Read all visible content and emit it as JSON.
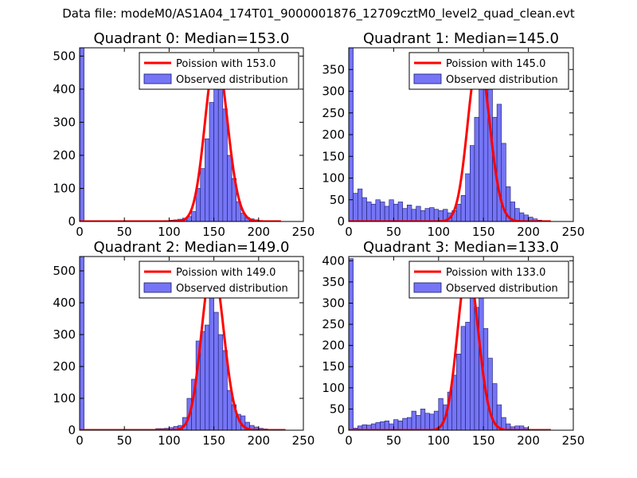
{
  "figure_title": "Data file: modeM0/AS1A04_174T01_9000001876_12709cztM0_level2_quad_clean.evt",
  "colors": {
    "bars": "#7575f5",
    "bar_edge": "#1a1a6e",
    "model": "#ff0000",
    "axes": "#000000"
  },
  "chart_data": [
    {
      "type": "bar",
      "title": "Quadrant 0: Median=153.0",
      "xlim": [
        0,
        250
      ],
      "ylim": [
        0,
        525
      ],
      "xticks": [
        0,
        50,
        100,
        150,
        200,
        250
      ],
      "yticks": [
        0,
        100,
        200,
        300,
        400,
        500
      ],
      "legend": [
        "Poission with 153.0",
        "Observed distribution"
      ],
      "legend_position": "top-right",
      "median": 153.0,
      "model_scale": 505,
      "model_x": [
        0,
        225
      ],
      "bin_width": 5,
      "bins": [
        [
          0,
          525
        ],
        [
          95,
          3
        ],
        [
          100,
          4
        ],
        [
          105,
          5
        ],
        [
          110,
          7
        ],
        [
          115,
          10
        ],
        [
          120,
          15
        ],
        [
          125,
          30
        ],
        [
          130,
          100
        ],
        [
          135,
          160
        ],
        [
          140,
          250
        ],
        [
          145,
          360
        ],
        [
          150,
          400
        ],
        [
          155,
          410
        ],
        [
          160,
          340
        ],
        [
          165,
          200
        ],
        [
          170,
          130
        ],
        [
          175,
          60
        ],
        [
          180,
          25
        ],
        [
          185,
          12
        ],
        [
          190,
          8
        ],
        [
          195,
          5
        ],
        [
          200,
          3
        ],
        [
          205,
          2
        ],
        [
          210,
          1
        ]
      ]
    },
    {
      "type": "bar",
      "title": "Quadrant 1: Median=145.0",
      "xlim": [
        0,
        250
      ],
      "ylim": [
        0,
        400
      ],
      "xticks": [
        0,
        50,
        100,
        150,
        200,
        250
      ],
      "yticks": [
        0,
        50,
        100,
        150,
        200,
        250,
        300,
        350
      ],
      "legend": [
        "Poission with 145.0",
        "Observed distribution"
      ],
      "legend_position": "top-right",
      "median": 145.0,
      "model_scale": 380,
      "model_x": [
        0,
        225
      ],
      "bin_width": 5,
      "bins": [
        [
          0,
          400
        ],
        [
          5,
          65
        ],
        [
          10,
          75
        ],
        [
          15,
          55
        ],
        [
          20,
          45
        ],
        [
          25,
          40
        ],
        [
          30,
          50
        ],
        [
          35,
          45
        ],
        [
          40,
          35
        ],
        [
          45,
          50
        ],
        [
          50,
          40
        ],
        [
          55,
          45
        ],
        [
          60,
          30
        ],
        [
          65,
          38
        ],
        [
          70,
          28
        ],
        [
          75,
          35
        ],
        [
          80,
          25
        ],
        [
          85,
          30
        ],
        [
          90,
          32
        ],
        [
          95,
          28
        ],
        [
          100,
          25
        ],
        [
          105,
          28
        ],
        [
          110,
          20
        ],
        [
          115,
          25
        ],
        [
          120,
          40
        ],
        [
          125,
          60
        ],
        [
          130,
          110
        ],
        [
          135,
          175
        ],
        [
          140,
          240
        ],
        [
          145,
          310
        ],
        [
          150,
          370
        ],
        [
          155,
          330
        ],
        [
          160,
          240
        ],
        [
          165,
          270
        ],
        [
          170,
          180
        ],
        [
          175,
          80
        ],
        [
          180,
          45
        ],
        [
          185,
          30
        ],
        [
          190,
          20
        ],
        [
          195,
          15
        ],
        [
          200,
          10
        ],
        [
          205,
          6
        ],
        [
          210,
          3
        ]
      ]
    },
    {
      "type": "bar",
      "title": "Quadrant 2: Median=149.0",
      "xlim": [
        0,
        250
      ],
      "ylim": [
        0,
        545
      ],
      "xticks": [
        0,
        50,
        100,
        150,
        200,
        250
      ],
      "yticks": [
        0,
        100,
        200,
        300,
        400,
        500
      ],
      "legend": [
        "Poission with 149.0",
        "Observed distribution"
      ],
      "legend_position": "top-right",
      "median": 149.0,
      "model_scale": 520,
      "model_x": [
        0,
        230
      ],
      "bin_width": 5,
      "bins": [
        [
          0,
          545
        ],
        [
          85,
          5
        ],
        [
          90,
          5
        ],
        [
          95,
          6
        ],
        [
          100,
          8
        ],
        [
          105,
          12
        ],
        [
          110,
          15
        ],
        [
          115,
          40
        ],
        [
          120,
          100
        ],
        [
          125,
          160
        ],
        [
          130,
          280
        ],
        [
          135,
          310
        ],
        [
          140,
          330
        ],
        [
          145,
          420
        ],
        [
          150,
          370
        ],
        [
          155,
          300
        ],
        [
          160,
          250
        ],
        [
          165,
          125
        ],
        [
          170,
          80
        ],
        [
          175,
          50
        ],
        [
          180,
          45
        ],
        [
          185,
          25
        ],
        [
          190,
          15
        ],
        [
          195,
          10
        ],
        [
          200,
          6
        ],
        [
          205,
          4
        ],
        [
          210,
          3
        ],
        [
          215,
          2
        ],
        [
          220,
          1
        ]
      ]
    },
    {
      "type": "bar",
      "title": "Quadrant 3: Median=133.0",
      "xlim": [
        0,
        250
      ],
      "ylim": [
        0,
        410
      ],
      "xticks": [
        0,
        50,
        100,
        150,
        200,
        250
      ],
      "yticks": [
        0,
        50,
        100,
        150,
        200,
        250,
        300,
        350,
        400
      ],
      "legend": [
        "Poission with 133.0",
        "Observed distribution"
      ],
      "legend_position": "top-right",
      "median": 133.0,
      "model_scale": 385,
      "model_x": [
        0,
        225
      ],
      "bin_width": 5,
      "bins": [
        [
          0,
          405
        ],
        [
          5,
          5
        ],
        [
          10,
          10
        ],
        [
          15,
          13
        ],
        [
          20,
          12
        ],
        [
          25,
          15
        ],
        [
          30,
          18
        ],
        [
          35,
          20
        ],
        [
          40,
          22
        ],
        [
          45,
          15
        ],
        [
          50,
          25
        ],
        [
          55,
          22
        ],
        [
          60,
          28
        ],
        [
          65,
          30
        ],
        [
          70,
          45
        ],
        [
          75,
          35
        ],
        [
          80,
          50
        ],
        [
          85,
          40
        ],
        [
          90,
          38
        ],
        [
          95,
          45
        ],
        [
          100,
          75
        ],
        [
          105,
          60
        ],
        [
          110,
          90
        ],
        [
          115,
          130
        ],
        [
          120,
          180
        ],
        [
          125,
          245
        ],
        [
          130,
          255
        ],
        [
          135,
          325
        ],
        [
          140,
          290
        ],
        [
          145,
          355
        ],
        [
          150,
          240
        ],
        [
          155,
          170
        ],
        [
          160,
          110
        ],
        [
          165,
          60
        ],
        [
          170,
          30
        ],
        [
          175,
          15
        ],
        [
          180,
          8
        ],
        [
          185,
          10
        ],
        [
          190,
          10
        ],
        [
          195,
          6
        ]
      ]
    }
  ]
}
